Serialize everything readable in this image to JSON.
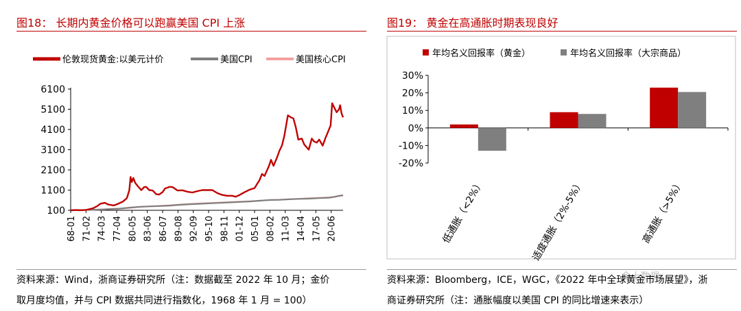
{
  "left": {
    "figure_title": "图18： 长期内黄金价格可以跑赢美国 CPI 上涨",
    "source_line1": "资料来源：Wind，浙商证券研究所（注：数据截至 2022 年 10 月；金价",
    "source_line2": "取月度均值，并与 CPI 数据共同进行指数化，1968 年 1 月 = 100）"
  },
  "right": {
    "figure_title": "图19： 黄金在高通胀时期表现良好",
    "source_line1": "资料来源：Bloomberg，ICE，WGC，《2022 年中全球黄金市场展望》，浙",
    "source_line2": "商证券研究所（注：通胀幅度以美国 CPI 的同比增速来表示）",
    "watermark": "金十数据"
  },
  "colors": {
    "gold": "#c00000",
    "cpi": "#7f7f7f",
    "core": "#f4a0a0",
    "bar_gold": "#c00000",
    "bar_commodity": "#7f7f7f"
  },
  "chart_data": [
    {
      "type": "line",
      "title": "",
      "xlabel": "",
      "ylabel": "",
      "x_ticks": [
        "68-01",
        "71-02",
        "74-03",
        "77-04",
        "80-05",
        "83-06",
        "86-07",
        "89-08",
        "92-09",
        "95-10",
        "98-11",
        "01-12",
        "05-01",
        "08-02",
        "11-03",
        "14-04",
        "17-05",
        "20-06"
      ],
      "y_ticks": [
        "6100",
        "5100",
        "4100",
        "3100",
        "2100",
        "1100",
        "100"
      ],
      "ylim": [
        100,
        6100
      ],
      "xlim": [
        1968.0,
        2022.8
      ],
      "legend": [
        "伦敦现货黄金:以美元计价",
        "美国CPI",
        "美国核心CPI"
      ],
      "legend_position": "top",
      "series": [
        {
          "name": "伦敦现货黄金:以美元计价",
          "color": "#c00000",
          "x": [
            1968.0,
            1969.0,
            1970.0,
            1971.0,
            1972.0,
            1972.5,
            1973.3,
            1974.0,
            1974.9,
            1975.5,
            1976.7,
            1977.5,
            1978.5,
            1979.3,
            1979.8,
            1980.05,
            1980.3,
            1980.6,
            1981.0,
            1981.5,
            1982.2,
            1982.8,
            1983.2,
            1983.8,
            1984.5,
            1985.2,
            1985.8,
            1986.5,
            1987.0,
            1987.9,
            1988.5,
            1989.5,
            1990.5,
            1991.5,
            1992.5,
            1993.5,
            1994.5,
            1995.5,
            1996.5,
            1997.5,
            1998.5,
            1999.5,
            2000.5,
            2001.2,
            2002.0,
            2003.0,
            2004.0,
            2005.0,
            2006.0,
            2006.5,
            2007.0,
            2007.9,
            2008.3,
            2008.8,
            2009.5,
            2010.0,
            2010.5,
            2011.0,
            2011.7,
            2012.3,
            2012.8,
            2013.3,
            2013.8,
            2014.5,
            2015.0,
            2015.9,
            2016.5,
            2017.0,
            2017.5,
            2018.0,
            2018.7,
            2019.3,
            2019.8,
            2020.3,
            2020.6,
            2021.0,
            2021.5,
            2022.0,
            2022.2,
            2022.5,
            2022.8
          ],
          "values": [
            100,
            115,
            105,
            115,
            170,
            200,
            300,
            430,
            470,
            390,
            340,
            420,
            530,
            700,
            1100,
            1750,
            1500,
            1700,
            1450,
            1300,
            1100,
            1250,
            1260,
            1100,
            1080,
            900,
            880,
            1000,
            1180,
            1260,
            1250,
            1080,
            1090,
            1020,
            980,
            1050,
            1100,
            1100,
            1100,
            950,
            860,
            820,
            820,
            770,
            860,
            1000,
            1120,
            1200,
            1600,
            1900,
            1800,
            2300,
            2600,
            2300,
            2700,
            3050,
            3300,
            3800,
            4800,
            4700,
            4650,
            4200,
            3600,
            3650,
            3350,
            3100,
            3650,
            3500,
            3450,
            3600,
            3300,
            3700,
            4000,
            4300,
            5400,
            5200,
            4950,
            5100,
            5300,
            4900,
            4700
          ]
        },
        {
          "name": "美国CPI",
          "color": "#7f7f7f",
          "x": [
            1968,
            1970,
            1972,
            1974,
            1976,
            1978,
            1980,
            1982,
            1984,
            1986,
            1988,
            1990,
            1992,
            1994,
            1996,
            1998,
            2000,
            2002,
            2004,
            2006,
            2008,
            2010,
            2012,
            2014,
            2016,
            2018,
            2020,
            2021,
            2022,
            2022.8
          ],
          "values": [
            100,
            112,
            120,
            140,
            165,
            185,
            236,
            276,
            295,
            311,
            333,
            372,
            401,
            423,
            447,
            465,
            491,
            512,
            536,
            574,
            610,
            620,
            645,
            665,
            675,
            702,
            725,
            760,
            820,
            850
          ]
        },
        {
          "name": "美国核心CPI",
          "color": "#f4a0a0",
          "x": [
            1968,
            1970,
            1972,
            1974,
            1976,
            1978,
            1980,
            1982,
            1984,
            1986,
            1988,
            1990,
            1992,
            1994,
            1996,
            1998,
            2000,
            2002,
            2004,
            2006,
            2008,
            2010,
            2012,
            2014,
            2016,
            2018,
            2020,
            2021,
            2022,
            2022.8
          ],
          "values": [
            100,
            112,
            121,
            136,
            160,
            180,
            222,
            268,
            292,
            322,
            347,
            384,
            415,
            440,
            463,
            485,
            505,
            530,
            548,
            575,
            609,
            623,
            648,
            670,
            695,
            718,
            740,
            765,
            810,
            830
          ]
        }
      ]
    },
    {
      "type": "bar",
      "title": "",
      "xlabel": "",
      "ylabel": "",
      "categories": [
        "低通胀（<2%）",
        "适度通胀（2%-5%）",
        "高通胀（>5%）"
      ],
      "y_ticks": [
        "30%",
        "20%",
        "10%",
        "0%",
        "-10%",
        "-20%"
      ],
      "ylim": [
        -20,
        30
      ],
      "legend_position": "top-left",
      "series": [
        {
          "name": "年均名义回报率（黄金）",
          "color": "#c00000",
          "values": [
            2,
            9,
            23
          ]
        },
        {
          "name": "年均名义回报率（大宗商品）",
          "color": "#7f7f7f",
          "values": [
            -13,
            8,
            20.5
          ]
        }
      ]
    }
  ]
}
